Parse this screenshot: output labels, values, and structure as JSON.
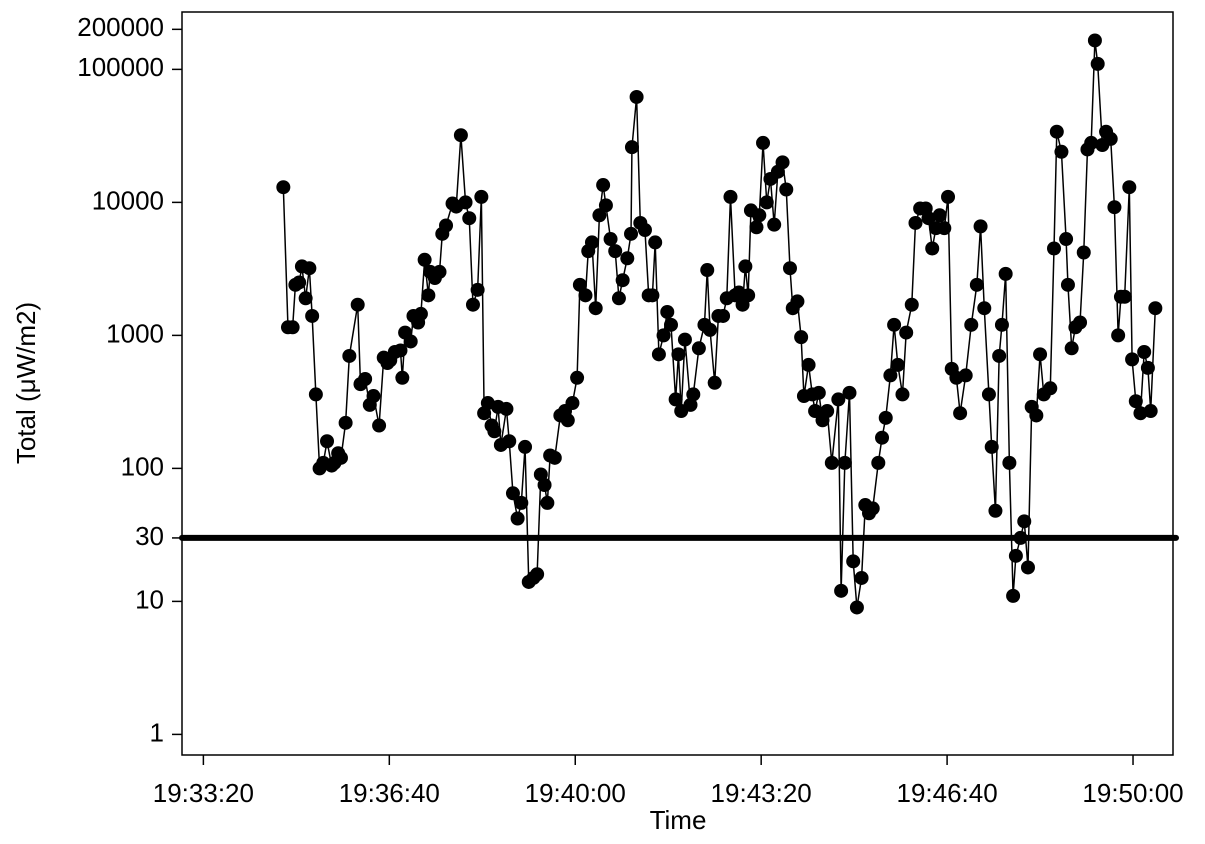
{
  "chart_data": {
    "type": "line",
    "x_label": "Time",
    "y_label": "Total (μW/m2)",
    "log_y": true,
    "color": "#000000",
    "hline": 30,
    "xlim": [
      "19:32:57",
      "19:50:43"
    ],
    "xticks": [
      "19:33:20",
      "19:36:40",
      "19:40:00",
      "19:43:20",
      "19:46:40",
      "19:50:00"
    ],
    "ylim": [
      0.7,
      270000
    ],
    "yticks": [
      1,
      10,
      30,
      100,
      1000,
      10000,
      100000,
      200000
    ],
    "x": [
      "19:34:46",
      "19:34:51",
      "19:34:56",
      "19:34:59",
      "19:35:03",
      "19:35:06",
      "19:35:10",
      "19:35:14",
      "19:35:17",
      "19:35:21",
      "19:35:25",
      "19:35:29",
      "19:35:33",
      "19:35:38",
      "19:35:41",
      "19:35:45",
      "19:35:48",
      "19:35:53",
      "19:35:57",
      "19:36:06",
      "19:36:09",
      "19:36:14",
      "19:36:19",
      "19:36:23",
      "19:36:29",
      "19:36:34",
      "19:36:38",
      "19:36:41",
      "19:36:46",
      "19:36:52",
      "19:36:54",
      "19:36:57",
      "19:37:03",
      "19:37:06",
      "19:37:11",
      "19:37:14",
      "19:37:18",
      "19:37:22",
      "19:37:24",
      "19:37:29",
      "19:37:34",
      "19:37:37",
      "19:37:41",
      "19:37:48",
      "19:37:52",
      "19:37:57",
      "19:38:02",
      "19:38:06",
      "19:38:10",
      "19:38:15",
      "19:38:19",
      "19:38:22",
      "19:38:26",
      "19:38:30",
      "19:38:33",
      "19:38:37",
      "19:38:40",
      "19:38:46",
      "19:38:49",
      "19:38:53",
      "19:38:58",
      "19:39:02",
      "19:39:06",
      "19:39:10",
      "19:39:15",
      "19:39:19",
      "19:39:23",
      "19:39:27",
      "19:39:30",
      "19:39:33",
      "19:39:38",
      "19:39:44",
      "19:39:49",
      "19:39:52",
      "19:39:57",
      "19:40:02",
      "19:40:05",
      "19:40:11",
      "19:40:14",
      "19:40:18",
      "19:40:22",
      "19:40:26",
      "19:40:30",
      "19:40:33",
      "19:40:38",
      "19:40:43",
      "19:40:47",
      "19:40:51",
      "19:40:56",
      "19:41:00",
      "19:41:01",
      "19:41:06",
      "19:41:10",
      "19:41:15",
      "19:41:19",
      "19:41:23",
      "19:41:26",
      "19:41:30",
      "19:41:35",
      "19:41:39",
      "19:41:43",
      "19:41:48",
      "19:41:51",
      "19:41:54",
      "19:41:58",
      "19:42:04",
      "19:42:07",
      "19:42:13",
      "19:42:19",
      "19:42:22",
      "19:42:25",
      "19:42:30",
      "19:42:34",
      "19:42:39",
      "19:42:43",
      "19:42:47",
      "19:42:52",
      "19:42:56",
      "19:43:00",
      "19:43:03",
      "19:43:06",
      "19:43:09",
      "19:43:15",
      "19:43:18",
      "19:43:22",
      "19:43:26",
      "19:43:30",
      "19:43:34",
      "19:43:38",
      "19:43:43",
      "19:43:47",
      "19:43:51",
      "19:43:54",
      "19:43:59",
      "19:44:03",
      "19:44:06",
      "19:44:11",
      "19:44:15",
      "19:44:18",
      "19:44:22",
      "19:44:26",
      "19:44:31",
      "19:44:36",
      "19:44:43",
      "19:44:46",
      "19:44:50",
      "19:44:55",
      "19:44:59",
      "19:45:03",
      "19:45:08",
      "19:45:12",
      "19:45:16",
      "19:45:20",
      "19:45:26",
      "19:45:30",
      "19:45:34",
      "19:45:39",
      "19:45:43",
      "19:45:47",
      "19:45:52",
      "19:45:56",
      "19:46:02",
      "19:46:06",
      "19:46:11",
      "19:46:17",
      "19:46:20",
      "19:46:24",
      "19:46:28",
      "19:46:32",
      "19:46:37",
      "19:46:41",
      "19:46:45",
      "19:46:50",
      "19:46:54",
      "19:47:00",
      "19:47:06",
      "19:47:12",
      "19:47:16",
      "19:47:20",
      "19:47:25",
      "19:47:28",
      "19:47:32",
      "19:47:36",
      "19:47:39",
      "19:47:43",
      "19:47:47",
      "19:47:51",
      "19:47:54",
      "19:47:59",
      "19:48:03",
      "19:48:07",
      "19:48:11",
      "19:48:16",
      "19:48:20",
      "19:48:24",
      "19:48:31",
      "19:48:35",
      "19:48:38",
      "19:48:43",
      "19:48:48",
      "19:48:50",
      "19:48:54",
      "19:48:58",
      "19:49:03",
      "19:49:07",
      "19:49:11",
      "19:49:15",
      "19:49:19",
      "19:49:22",
      "19:49:27",
      "19:49:31",
      "19:49:36",
      "19:49:40",
      "19:49:44",
      "19:49:47",
      "19:49:51",
      "19:49:56",
      "19:49:59",
      "19:50:03",
      "19:50:08",
      "19:50:12",
      "19:50:16",
      "19:50:19",
      "19:50:24"
    ],
    "values": [
      13000,
      1150,
      1150,
      2400,
      2500,
      3300,
      1900,
      3200,
      1400,
      360,
      100,
      110,
      160,
      105,
      110,
      130,
      120,
      220,
      700,
      1700,
      430,
      470,
      300,
      350,
      210,
      680,
      620,
      650,
      750,
      770,
      480,
      1050,
      900,
      1400,
      1250,
      1450,
      3700,
      2000,
      3000,
      2700,
      3000,
      5800,
      6700,
      9800,
      9300,
      32000,
      10000,
      7600,
      1700,
      2200,
      11000,
      260,
      310,
      210,
      190,
      290,
      150,
      280,
      160,
      65,
      42,
      55,
      145,
      14,
      15,
      16,
      90,
      75,
      55,
      125,
      120,
      250,
      270,
      230,
      310,
      480,
      2400,
      2000,
      4300,
      5000,
      1600,
      8000,
      13500,
      9500,
      5300,
      4300,
      1900,
      2600,
      3800,
      5800,
      26000,
      62000,
      7000,
      6200,
      2000,
      2000,
      5000,
      720,
      1000,
      1500,
      1200,
      330,
      720,
      270,
      930,
      300,
      360,
      800,
      1200,
      3100,
      1100,
      440,
      1400,
      1400,
      1900,
      11000,
      2000,
      2100,
      1700,
      3300,
      2000,
      8700,
      6500,
      8000,
      28000,
      10000,
      15000,
      6800,
      17000,
      20000,
      12500,
      3200,
      1600,
      1800,
      970,
      350,
      600,
      360,
      270,
      370,
      230,
      270,
      110,
      330,
      12,
      110,
      370,
      20,
      9,
      15,
      53,
      46,
      50,
      110,
      170,
      240,
      500,
      1200,
      600,
      360,
      1050,
      1700,
      7000,
      9000,
      9000,
      7600,
      4500,
      6400,
      8000,
      6400,
      11000,
      560,
      480,
      260,
      500,
      1200,
      2400,
      6600,
      1600,
      360,
      145,
      48,
      700,
      1200,
      2900,
      110,
      11,
      22,
      30,
      40,
      18,
      290,
      250,
      720,
      360,
      400,
      4500,
      34000,
      24000,
      5300,
      2400,
      800,
      1150,
      1250,
      4200,
      25000,
      28000,
      165000,
      110000,
      27000,
      34000,
      30000,
      9200,
      1000,
      1950,
      1950,
      13000,
      660,
      320,
      260,
      750,
      570,
      270,
      1600
    ]
  }
}
